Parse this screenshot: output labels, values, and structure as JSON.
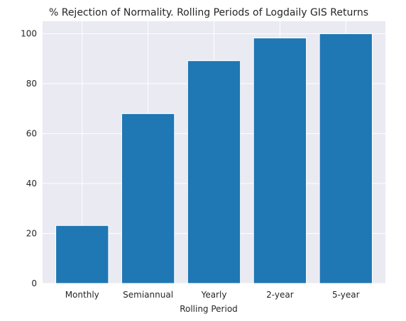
{
  "chart_data": {
    "type": "bar",
    "title": "% Rejection of Normality. Rolling Periods of Logdaily GIS Returns",
    "xlabel": "Rolling Period",
    "ylabel": "",
    "categories": [
      "Monthly",
      "Semiannual",
      "Yearly",
      "2-year",
      "5-year"
    ],
    "values": [
      23.2,
      68.0,
      89.2,
      98.3,
      100.0
    ],
    "ylim": [
      0,
      105
    ],
    "yticks": [
      0,
      20,
      40,
      60,
      80,
      100
    ],
    "grid": true,
    "legend": "none",
    "colors": {
      "bar": "#1f77b4",
      "plot_background": "#eaeaf2",
      "grid": "#ffffff",
      "text": "#262626"
    }
  }
}
